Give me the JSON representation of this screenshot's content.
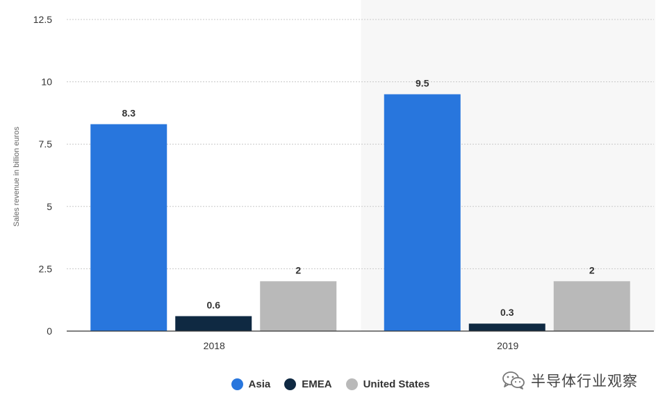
{
  "chart_data": {
    "type": "bar",
    "title": "",
    "xlabel": "",
    "ylabel": "Sales revenue in billion euros",
    "ylim": [
      0,
      12.5
    ],
    "yticks": [
      0,
      2.5,
      5,
      7.5,
      10,
      12.5
    ],
    "ytick_labels": [
      "0",
      "2.5",
      "5",
      "7.5",
      "10",
      "12.5"
    ],
    "categories": [
      "2018",
      "2019"
    ],
    "highlighted_category": "2019",
    "grid": true,
    "legend_position": "bottom-center",
    "series": [
      {
        "name": "Asia",
        "color": "#2876dd",
        "values": [
          8.3,
          9.5
        ],
        "labels": [
          "8.3",
          "9.5"
        ]
      },
      {
        "name": "EMEA",
        "color": "#0f2942",
        "values": [
          0.6,
          0.3
        ],
        "labels": [
          "0.6",
          "0.3"
        ]
      },
      {
        "name": "United States",
        "color": "#b9b9b9",
        "values": [
          2,
          2
        ],
        "labels": [
          "2",
          "2"
        ]
      }
    ]
  },
  "watermark": {
    "text": "半导体行业观察",
    "icon": "wechat-icon"
  }
}
